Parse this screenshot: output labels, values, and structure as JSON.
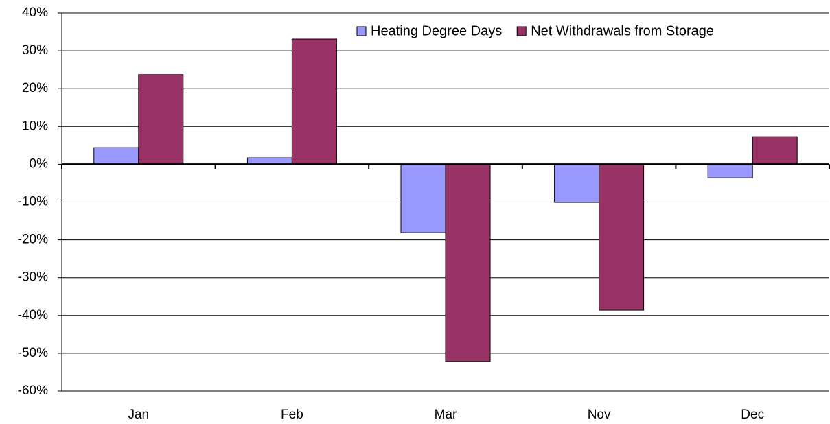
{
  "chart_data": {
    "type": "bar",
    "categories": [
      "Jan",
      "Feb",
      "Mar",
      "Nov",
      "Dec"
    ],
    "series": [
      {
        "name": "Heating Degree Days",
        "color": "#9999ff",
        "values": [
          4.4,
          1.7,
          -18.1,
          -10.1,
          -3.6
        ]
      },
      {
        "name": "Net Withdrawals from Storage",
        "color": "#993366",
        "values": [
          23.7,
          33.1,
          -52.2,
          -38.6,
          7.3
        ]
      }
    ],
    "ylim": [
      -60,
      40
    ],
    "yticks": [
      {
        "value": -60,
        "label": "-60%"
      },
      {
        "value": -50,
        "label": "-50%"
      },
      {
        "value": -40,
        "label": "-40%"
      },
      {
        "value": -30,
        "label": "-30%"
      },
      {
        "value": -20,
        "label": "-20%"
      },
      {
        "value": -10,
        "label": "-10%"
      },
      {
        "value": 0,
        "label": "0%"
      },
      {
        "value": 10,
        "label": "10%"
      },
      {
        "value": 20,
        "label": "20%"
      },
      {
        "value": 30,
        "label": "30%"
      },
      {
        "value": 40,
        "label": "40%"
      }
    ],
    "grid": true,
    "legend": "top-right"
  }
}
